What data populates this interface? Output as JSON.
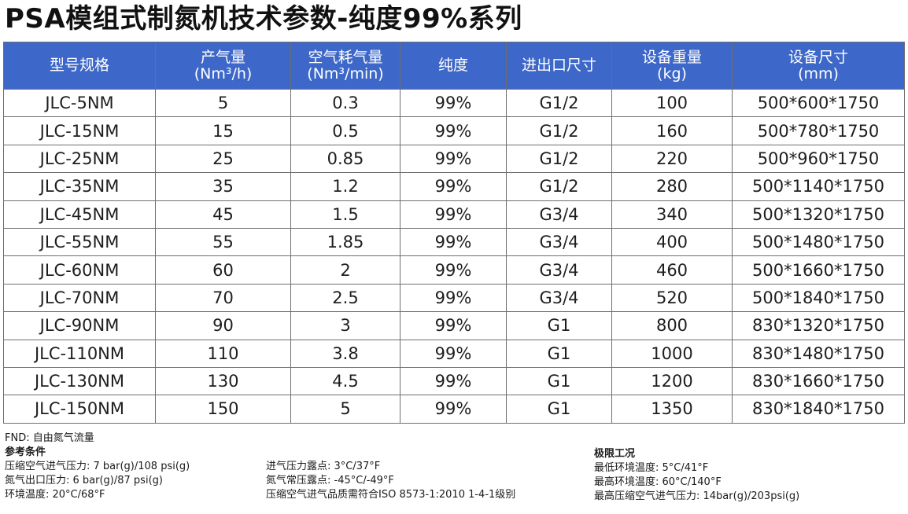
{
  "title": "PSA模组式制氮机技术参数-纯度99%系列",
  "table": {
    "headers": [
      [
        "型号规格"
      ],
      [
        "产气量",
        "(Nm³/h)"
      ],
      [
        "空气耗气量",
        "(Nm³/min)"
      ],
      [
        "纯度"
      ],
      [
        "进出口尺寸"
      ],
      [
        "设备重量",
        "(kg)"
      ],
      [
        "设备尺寸",
        "(mm)"
      ]
    ],
    "rows": [
      [
        "JLC-5NM",
        "5",
        "0.3",
        "99%",
        "G1/2",
        "100",
        "500*600*1750"
      ],
      [
        "JLC-15NM",
        "15",
        "0.5",
        "99%",
        "G1/2",
        "160",
        "500*780*1750"
      ],
      [
        "JLC-25NM",
        "25",
        "0.85",
        "99%",
        "G1/2",
        "220",
        "500*960*1750"
      ],
      [
        "JLC-35NM",
        "35",
        "1.2",
        "99%",
        "G1/2",
        "280",
        "500*1140*1750"
      ],
      [
        "JLC-45NM",
        "45",
        "1.5",
        "99%",
        "G3/4",
        "340",
        "500*1320*1750"
      ],
      [
        "JLC-55NM",
        "55",
        "1.85",
        "99%",
        "G3/4",
        "400",
        "500*1480*1750"
      ],
      [
        "JLC-60NM",
        "60",
        "2",
        "99%",
        "G3/4",
        "460",
        "500*1660*1750"
      ],
      [
        "JLC-70NM",
        "70",
        "2.5",
        "99%",
        "G3/4",
        "520",
        "500*1840*1750"
      ],
      [
        "JLC-90NM",
        "90",
        "3",
        "99%",
        "G1",
        "800",
        "830*1320*1750"
      ],
      [
        "JLC-110NM",
        "110",
        "3.8",
        "99%",
        "G1",
        "1000",
        "830*1480*1750"
      ],
      [
        "JLC-130NM",
        "130",
        "4.5",
        "99%",
        "G1",
        "1200",
        "830*1660*1750"
      ],
      [
        "JLC-150NM",
        "150",
        "5",
        "99%",
        "G1",
        "1350",
        "830*1840*1750"
      ]
    ]
  },
  "notes": {
    "fnd": "FND: 自由氮气流量",
    "reference_title": "参考条件",
    "reference_col1": [
      "压缩空气进气压力: 7 bar(g)/108 psi(g)",
      "氮气出口压力: 6 bar(g)/87 psi(g)",
      "环境温度: 20°C/68°F"
    ],
    "reference_col2": [
      "进气压力露点: 3°C/37°F",
      "氮气常压露点: -45°C/-49°F",
      "压缩空气进气品质需符合ISO 8573-1:2010 1-4-1级别"
    ],
    "limits_title": "极限工况",
    "limits": [
      "最低环境温度: 5°C/41°F",
      "最高环境温度: 60°C/140°F",
      "最高压缩空气进气压力: 14bar(g)/203psi(g)"
    ]
  },
  "colors": {
    "header_bg": "#3d67c8",
    "header_text": "#ffffff",
    "border": "#6f6f6f"
  }
}
